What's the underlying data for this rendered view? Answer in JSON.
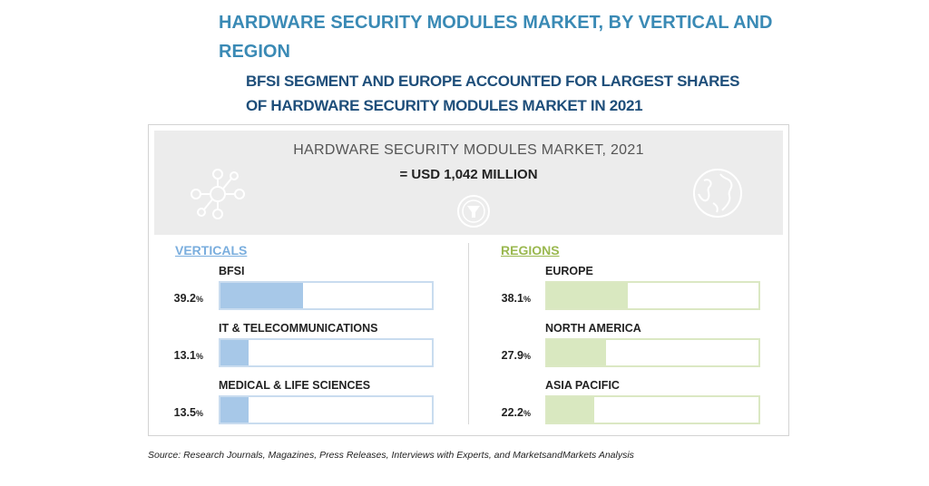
{
  "header": {
    "title": "HARDWARE SECURITY MODULES MARKET, BY VERTICAL AND REGION",
    "subtitle": "BFSI SEGMENT AND EUROPE ACCOUNTED FOR LARGEST SHARES OF HARDWARE SECURITY MODULES MARKET IN 2021"
  },
  "banner": {
    "market_name": "HARDWARE SECURITY MODULES MARKET, 2021",
    "market_value": "= USD 1,042 MILLION",
    "icons": [
      "network-icon",
      "globe-icon",
      "funnel-icon"
    ]
  },
  "colors": {
    "title": "#3a8ab5",
    "subtitle": "#1e4e7a",
    "verticals_fill": "#a7c8e8",
    "regions_fill": "#d9e8c0"
  },
  "chart_data": [
    {
      "type": "bar",
      "title": "VERTICALS",
      "categories": [
        "BFSI",
        "IT & TELECOMMUNICATIONS",
        "MEDICAL & LIFE SCIENCES"
      ],
      "values": [
        39.2,
        13.1,
        13.5
      ],
      "value_labels": [
        "39.2",
        "13.1",
        "13.5"
      ],
      "unit": "%",
      "ylim": [
        0,
        100
      ]
    },
    {
      "type": "bar",
      "title": "REGIONS",
      "categories": [
        "EUROPE",
        "NORTH AMERICA",
        "ASIA PACIFIC"
      ],
      "values": [
        38.1,
        27.9,
        22.2
      ],
      "value_labels": [
        "38.1",
        "27.9",
        "22.2"
      ],
      "unit": "%",
      "ylim": [
        0,
        100
      ]
    }
  ],
  "source": "Source: Research Journals, Magazines, Press Releases, Interviews with Experts, and MarketsandMarkets Analysis"
}
